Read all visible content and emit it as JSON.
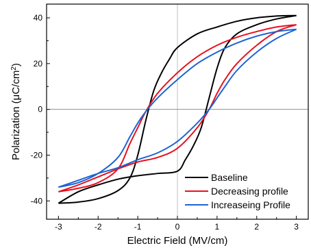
{
  "chart_data": {
    "type": "line",
    "xlabel": "Electric Field (MV/cm)",
    "ylabel_main": "Polarization (",
    "ylabel_unit": "μC/cm",
    "ylabel_sup": "2",
    "ylabel_close": ")",
    "xlim": [
      -3.3,
      3.3
    ],
    "ylim": [
      -48,
      46
    ],
    "xticks": [
      -3,
      -2,
      -1,
      0,
      1,
      2,
      3
    ],
    "yticks": [
      -40,
      -20,
      0,
      20,
      40
    ],
    "xtick_labels": [
      "-3",
      "-2",
      "-1",
      "0",
      "1",
      "2",
      "3"
    ],
    "ytick_labels": [
      "-40",
      "-20",
      "0",
      "20",
      "40"
    ],
    "zero_lines": true,
    "legend_position": "bottom-right",
    "legend": [
      "Baseline",
      "Decreasing profile",
      "Increaseing Profile"
    ],
    "series": [
      {
        "name": "Baseline",
        "color": "#000000",
        "upper": [
          [
            -3,
            -41
          ],
          [
            -2.5,
            -40.5
          ],
          [
            -2,
            -39
          ],
          [
            -1.5,
            -35.5
          ],
          [
            -1.2,
            -30
          ],
          [
            -1,
            -20
          ],
          [
            -0.8,
            -5
          ],
          [
            -0.6,
            8
          ],
          [
            -0.4,
            16
          ],
          [
            -0.2,
            22
          ],
          [
            0,
            27
          ],
          [
            0.5,
            33
          ],
          [
            1,
            36
          ],
          [
            1.5,
            38.5
          ],
          [
            2,
            40
          ],
          [
            2.5,
            40.8
          ],
          [
            3,
            41
          ]
        ],
        "lower": [
          [
            -3,
            -41
          ],
          [
            -2.5,
            -36
          ],
          [
            -2,
            -33
          ],
          [
            -1.5,
            -30.5
          ],
          [
            -1,
            -29
          ],
          [
            -0.5,
            -28
          ],
          [
            0,
            -27
          ],
          [
            0.2,
            -22
          ],
          [
            0.4,
            -16
          ],
          [
            0.6,
            -8
          ],
          [
            0.8,
            5
          ],
          [
            1,
            18
          ],
          [
            1.2,
            27
          ],
          [
            1.5,
            33
          ],
          [
            2,
            37
          ],
          [
            2.5,
            39.5
          ],
          [
            3,
            41
          ]
        ]
      },
      {
        "name": "Decreasing profile",
        "color": "#e8101e",
        "upper": [
          [
            -3,
            -36
          ],
          [
            -2.5,
            -34.5
          ],
          [
            -2,
            -32
          ],
          [
            -1.5,
            -26
          ],
          [
            -1.2,
            -15
          ],
          [
            -1,
            -8
          ],
          [
            -0.8,
            -1
          ],
          [
            -0.5,
            7
          ],
          [
            0,
            16
          ],
          [
            0.5,
            23
          ],
          [
            1,
            28
          ],
          [
            1.5,
            31.5
          ],
          [
            2,
            34
          ],
          [
            2.5,
            36
          ],
          [
            3,
            37
          ]
        ],
        "lower": [
          [
            -3,
            -36
          ],
          [
            -2.5,
            -33
          ],
          [
            -2,
            -29.5
          ],
          [
            -1.5,
            -26
          ],
          [
            -1,
            -23
          ],
          [
            -0.5,
            -21
          ],
          [
            0,
            -17
          ],
          [
            0.5,
            -8
          ],
          [
            0.8,
            0
          ],
          [
            1,
            7
          ],
          [
            1.2,
            13
          ],
          [
            1.5,
            20
          ],
          [
            2,
            28
          ],
          [
            2.5,
            34
          ],
          [
            3,
            37
          ]
        ]
      },
      {
        "name": "Increaseing Profile",
        "color": "#1a64d2",
        "upper": [
          [
            -3,
            -34
          ],
          [
            -2.5,
            -32
          ],
          [
            -2,
            -28
          ],
          [
            -1.5,
            -21
          ],
          [
            -1.2,
            -12
          ],
          [
            -1,
            -6
          ],
          [
            -0.8,
            -1
          ],
          [
            -0.5,
            5
          ],
          [
            0,
            13
          ],
          [
            0.5,
            20
          ],
          [
            1,
            25
          ],
          [
            1.5,
            29
          ],
          [
            2,
            32
          ],
          [
            2.5,
            34
          ],
          [
            3,
            35
          ]
        ],
        "lower": [
          [
            -3,
            -34
          ],
          [
            -2.5,
            -31
          ],
          [
            -2,
            -28
          ],
          [
            -1.5,
            -25.5
          ],
          [
            -1,
            -22
          ],
          [
            -0.5,
            -19
          ],
          [
            0,
            -14
          ],
          [
            0.5,
            -6
          ],
          [
            0.8,
            0
          ],
          [
            1,
            5
          ],
          [
            1.2,
            10
          ],
          [
            1.5,
            17
          ],
          [
            2,
            25
          ],
          [
            2.5,
            31
          ],
          [
            3,
            35
          ]
        ]
      }
    ]
  }
}
